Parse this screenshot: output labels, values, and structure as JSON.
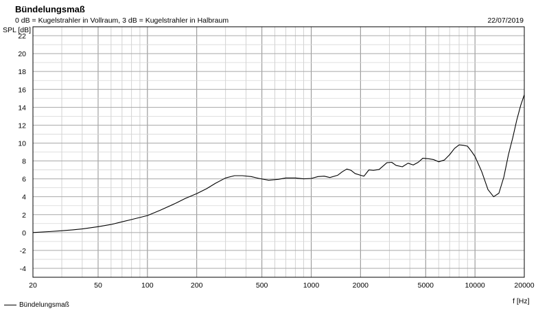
{
  "chart_data": {
    "type": "line",
    "title": "Bündelungsmaß",
    "subtitle": "0 dB = Kugelstrahler in Vollraum, 3 dB = Kugelstrahler in Halbraum",
    "date": "22/07/2019",
    "xlabel": "f [Hz]",
    "ylabel": "SPL [dB]",
    "x_scale": "log",
    "xlim": [
      20,
      20000
    ],
    "ylim": [
      -5,
      23
    ],
    "grid": true,
    "legend_position": "bottom-left",
    "x_ticks": [
      20,
      50,
      100,
      200,
      500,
      1000,
      2000,
      5000,
      10000,
      20000
    ],
    "x_tick_labels": [
      "20",
      "50",
      "100",
      "200",
      "500",
      "1000",
      "2000",
      "5000",
      "10000",
      "20000"
    ],
    "y_ticks": [
      -4,
      -2,
      0,
      2,
      4,
      6,
      8,
      10,
      12,
      14,
      16,
      18,
      20,
      22
    ],
    "y_tick_labels": [
      "-4",
      "-2",
      "0",
      "2",
      "4",
      "6",
      "8",
      "10",
      "12",
      "14",
      "16",
      "18",
      "20",
      "22"
    ],
    "series": [
      {
        "name": "Bündelungsmaß",
        "color": "#000000",
        "x": [
          20,
          25,
          30,
          35,
          40,
          50,
          60,
          70,
          80,
          100,
          120,
          150,
          170,
          200,
          230,
          260,
          300,
          340,
          380,
          430,
          480,
          550,
          630,
          700,
          800,
          900,
          1000,
          1100,
          1200,
          1300,
          1450,
          1550,
          1650,
          1750,
          1850,
          2000,
          2100,
          2250,
          2400,
          2600,
          2900,
          3100,
          3300,
          3600,
          3900,
          4200,
          4500,
          4800,
          5200,
          5600,
          6000,
          6500,
          7000,
          7500,
          8000,
          8500,
          9000,
          9500,
          10000,
          11000,
          12000,
          13000,
          14000,
          15000,
          16000,
          17000,
          18000,
          19000,
          20000
        ],
        "y": [
          0.0,
          0.1,
          0.2,
          0.3,
          0.4,
          0.65,
          0.9,
          1.2,
          1.45,
          1.9,
          2.5,
          3.3,
          3.8,
          4.35,
          4.9,
          5.5,
          6.1,
          6.35,
          6.35,
          6.25,
          6.05,
          5.85,
          5.95,
          6.1,
          6.1,
          6.0,
          6.05,
          6.25,
          6.3,
          6.15,
          6.4,
          6.8,
          7.1,
          6.95,
          6.6,
          6.4,
          6.3,
          7.0,
          6.95,
          7.05,
          7.8,
          7.85,
          7.5,
          7.35,
          7.75,
          7.55,
          7.85,
          8.3,
          8.25,
          8.15,
          7.9,
          8.1,
          8.7,
          9.4,
          9.8,
          9.75,
          9.65,
          9.1,
          8.5,
          6.8,
          4.8,
          4.0,
          4.4,
          6.2,
          8.7,
          10.6,
          12.6,
          14.2,
          15.4
        ]
      }
    ]
  }
}
